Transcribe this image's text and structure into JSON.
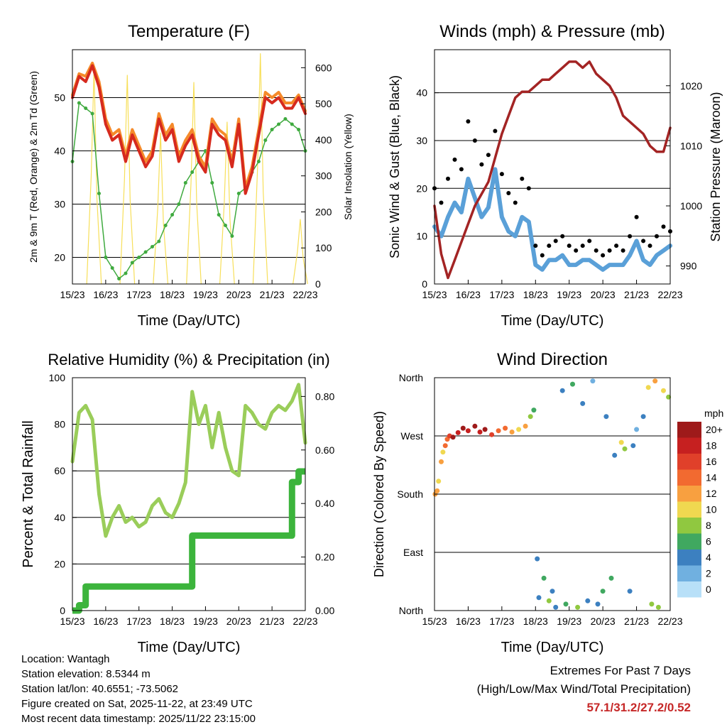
{
  "colors": {
    "red": "#d62a1e",
    "orange": "#f58a2a",
    "green_dewpoint": "#3faa3f",
    "yellow": "#f7df5a",
    "black": "#000000",
    "blue": "#5aa0d8",
    "maroon": "#a32424",
    "rh": "#9acd5a",
    "precip": "#3cb43c",
    "extremes": "#c62828"
  },
  "x_ticks": [
    "15/23",
    "16/23",
    "17/23",
    "18/23",
    "19/23",
    "20/23",
    "21/23",
    "22/23"
  ],
  "chart_data": [
    {
      "id": "temperature",
      "type": "line",
      "title": "Temperature (F)",
      "xlabel": "Time (Day/UTC)",
      "ylabel": "2m & 9m T (Red, Orange) & 2m Td (Green)",
      "y2label": "Solar Insolation (Yellow)",
      "ylim": [
        15,
        59
      ],
      "yticks": [
        20,
        30,
        40,
        50
      ],
      "y2lim": [
        0,
        650
      ],
      "y2ticks": [
        0,
        100,
        200,
        300,
        400,
        500,
        600
      ],
      "x": [
        0,
        0.2,
        0.4,
        0.6,
        0.8,
        1.0,
        1.2,
        1.4,
        1.6,
        1.8,
        2.0,
        2.2,
        2.4,
        2.6,
        2.8,
        3.0,
        3.2,
        3.4,
        3.6,
        3.8,
        4.0,
        4.2,
        4.4,
        4.6,
        4.8,
        5.0,
        5.2,
        5.4,
        5.6,
        5.8,
        6.0,
        6.2,
        6.4,
        6.6,
        6.8,
        7.0
      ],
      "series": [
        {
          "name": "2m T",
          "color": "#d62a1e",
          "values": [
            50,
            54,
            53,
            56,
            52,
            45,
            42,
            43,
            38,
            43,
            40,
            37,
            39,
            46,
            42,
            44,
            38,
            41,
            43,
            38,
            36,
            45,
            43,
            42,
            37,
            45,
            32,
            36,
            43,
            50,
            49,
            50,
            48,
            48,
            50,
            47
          ]
        },
        {
          "name": "9m T",
          "color": "#f58a2a",
          "values": [
            50.5,
            54.5,
            54,
            56.5,
            53,
            46,
            43,
            44,
            39,
            44,
            41,
            38,
            40,
            47,
            43,
            45,
            39,
            42,
            44,
            39,
            37,
            46,
            44,
            43,
            38,
            46,
            33,
            37,
            44,
            51,
            50,
            51,
            49,
            49,
            50.5,
            47.5
          ]
        },
        {
          "name": "2m Td",
          "color": "#3faa3f",
          "values": [
            38,
            49,
            48,
            47,
            32,
            20,
            18,
            16,
            17,
            19,
            20,
            21,
            22,
            23,
            26,
            28,
            30,
            34,
            36,
            38,
            40,
            34,
            28,
            26,
            24,
            32,
            33,
            36,
            38,
            42,
            44,
            45,
            46,
            45,
            44,
            40
          ]
        }
      ],
      "insolation": [
        {
          "center": 0.65,
          "peak": 600
        },
        {
          "center": 1.65,
          "peak": 580
        },
        {
          "center": 2.65,
          "peak": 420
        },
        {
          "center": 3.65,
          "peak": 560
        },
        {
          "center": 4.65,
          "peak": 450
        },
        {
          "center": 5.65,
          "peak": 640
        },
        {
          "center": 6.85,
          "peak": 180
        }
      ]
    },
    {
      "id": "winds",
      "type": "scatter",
      "title": "Winds (mph) & Pressure (mb)",
      "xlabel": "Time (Day/UTC)",
      "ylabel": "Sonic Wind & Gust (Blue, Black)",
      "y2label": "Station Pressure (Maroon)",
      "ylim": [
        0,
        49
      ],
      "yticks": [
        0,
        10,
        20,
        30,
        40
      ],
      "y2lim": [
        987,
        1026
      ],
      "y2ticks": [
        990,
        1000,
        1010,
        1020
      ],
      "x": [
        0,
        0.2,
        0.4,
        0.6,
        0.8,
        1.0,
        1.2,
        1.4,
        1.6,
        1.8,
        2.0,
        2.2,
        2.4,
        2.6,
        2.8,
        3.0,
        3.2,
        3.4,
        3.6,
        3.8,
        4.0,
        4.2,
        4.4,
        4.6,
        4.8,
        5.0,
        5.2,
        5.4,
        5.6,
        5.8,
        6.0,
        6.2,
        6.4,
        6.6,
        6.8,
        7.0
      ],
      "series": [
        {
          "name": "Sonic Wind",
          "color": "#5aa0d8",
          "values": [
            12,
            10,
            14,
            17,
            15,
            22,
            18,
            14,
            16,
            24,
            14,
            11,
            10,
            14,
            13,
            4,
            3,
            5,
            5,
            6,
            4,
            4,
            5,
            5,
            4,
            3,
            4,
            4,
            4,
            6,
            9,
            5,
            4,
            6,
            7,
            8
          ]
        },
        {
          "name": "Gust",
          "color": "#000000",
          "values": [
            20,
            17,
            22,
            26,
            24,
            34,
            30,
            25,
            27,
            32,
            23,
            19,
            17,
            22,
            20,
            8,
            6,
            8,
            9,
            10,
            8,
            7,
            8,
            9,
            7,
            6,
            7,
            8,
            7,
            10,
            14,
            9,
            8,
            10,
            12,
            11
          ]
        },
        {
          "name": "Station Pressure",
          "color": "#a32424",
          "values": [
            1000,
            992,
            988,
            991,
            994,
            997,
            1000,
            1002,
            1004,
            1008,
            1012,
            1015,
            1018,
            1019,
            1019,
            1020,
            1021,
            1021,
            1022,
            1023,
            1024,
            1024,
            1023,
            1024,
            1022,
            1021,
            1020,
            1018,
            1015,
            1014,
            1013,
            1012,
            1010,
            1009,
            1009,
            1013
          ]
        }
      ]
    },
    {
      "id": "humidity",
      "type": "line",
      "title": "Relative Humidity (%) & Precipitation (in)",
      "xlabel": "Time (Day/UTC)",
      "ylabel": "Percent & Total Rainfall",
      "ylim": [
        0,
        100
      ],
      "yticks": [
        0,
        20,
        40,
        60,
        80,
        100
      ],
      "y2lim": [
        0,
        0.87
      ],
      "y2ticks": [
        "0.00",
        "0.20",
        "0.40",
        "0.60",
        "0.80"
      ],
      "x": [
        0,
        0.2,
        0.4,
        0.6,
        0.8,
        1.0,
        1.2,
        1.4,
        1.6,
        1.8,
        2.0,
        2.2,
        2.4,
        2.6,
        2.8,
        3.0,
        3.2,
        3.4,
        3.6,
        3.8,
        4.0,
        4.2,
        4.4,
        4.6,
        4.8,
        5.0,
        5.2,
        5.4,
        5.6,
        5.8,
        6.0,
        6.2,
        6.4,
        6.6,
        6.8,
        7.0
      ],
      "series": [
        {
          "name": "Relative Humidity",
          "color": "#9acd5a",
          "values": [
            64,
            85,
            88,
            82,
            50,
            32,
            40,
            45,
            38,
            40,
            36,
            38,
            45,
            48,
            42,
            40,
            46,
            55,
            94,
            80,
            88,
            70,
            85,
            70,
            60,
            58,
            88,
            85,
            80,
            78,
            85,
            88,
            86,
            90,
            97,
            72
          ]
        },
        {
          "name": "Total Rainfall",
          "color": "#3cb43c",
          "values": [
            0,
            0.02,
            0.09,
            0.09,
            0.09,
            0.09,
            0.09,
            0.09,
            0.09,
            0.09,
            0.09,
            0.09,
            0.09,
            0.09,
            0.09,
            0.09,
            0.09,
            0.09,
            0.28,
            0.28,
            0.28,
            0.28,
            0.28,
            0.28,
            0.28,
            0.28,
            0.28,
            0.28,
            0.28,
            0.28,
            0.28,
            0.28,
            0.28,
            0.48,
            0.52,
            0.52
          ]
        }
      ]
    },
    {
      "id": "direction",
      "type": "scatter",
      "title": "Wind Direction",
      "xlabel": "Time (Day/UTC)",
      "ylabel": "Direction (Colored By Speed)",
      "yticks": [
        "North",
        "East",
        "South",
        "West",
        "North"
      ],
      "legend_title": "mph",
      "legend_labels": [
        "20+",
        "18",
        "16",
        "14",
        "12",
        "10",
        "8",
        "6",
        "4",
        "2",
        "0"
      ],
      "legend_colors": [
        "#9e1a1a",
        "#c62020",
        "#e0402a",
        "#f26a30",
        "#f8a040",
        "#f0d850",
        "#90c840",
        "#40a860",
        "#3c80c0",
        "#70b0e0",
        "#b8e0f8"
      ],
      "points": [
        {
          "x": 0.02,
          "y": 180,
          "s": 12
        },
        {
          "x": 0.08,
          "y": 185,
          "s": 11
        },
        {
          "x": 0.12,
          "y": 200,
          "s": 10
        },
        {
          "x": 0.2,
          "y": 230,
          "s": 12
        },
        {
          "x": 0.25,
          "y": 245,
          "s": 10
        },
        {
          "x": 0.32,
          "y": 255,
          "s": 14
        },
        {
          "x": 0.38,
          "y": 265,
          "s": 13
        },
        {
          "x": 0.45,
          "y": 270,
          "s": 15
        },
        {
          "x": 0.55,
          "y": 268,
          "s": 20
        },
        {
          "x": 0.7,
          "y": 275,
          "s": 18
        },
        {
          "x": 0.85,
          "y": 282,
          "s": 20
        },
        {
          "x": 1.0,
          "y": 278,
          "s": 18
        },
        {
          "x": 1.2,
          "y": 285,
          "s": 20
        },
        {
          "x": 1.35,
          "y": 276,
          "s": 18
        },
        {
          "x": 1.5,
          "y": 280,
          "s": 20
        },
        {
          "x": 1.7,
          "y": 272,
          "s": 16
        },
        {
          "x": 1.9,
          "y": 278,
          "s": 14
        },
        {
          "x": 2.1,
          "y": 282,
          "s": 14
        },
        {
          "x": 2.3,
          "y": 276,
          "s": 12
        },
        {
          "x": 2.5,
          "y": 280,
          "s": 10
        },
        {
          "x": 2.7,
          "y": 285,
          "s": 12
        },
        {
          "x": 2.85,
          "y": 300,
          "s": 8
        },
        {
          "x": 2.95,
          "y": 310,
          "s": 6
        },
        {
          "x": 3.05,
          "y": 80,
          "s": 3
        },
        {
          "x": 3.1,
          "y": 20,
          "s": 4
        },
        {
          "x": 3.25,
          "y": 50,
          "s": 6
        },
        {
          "x": 3.4,
          "y": 15,
          "s": 8
        },
        {
          "x": 3.5,
          "y": 30,
          "s": 3
        },
        {
          "x": 3.6,
          "y": 5,
          "s": 4
        },
        {
          "x": 3.8,
          "y": 340,
          "s": 4
        },
        {
          "x": 3.9,
          "y": 10,
          "s": 5
        },
        {
          "x": 4.1,
          "y": 350,
          "s": 6
        },
        {
          "x": 4.25,
          "y": 5,
          "s": 7
        },
        {
          "x": 4.4,
          "y": 320,
          "s": 3
        },
        {
          "x": 4.55,
          "y": 15,
          "s": 4
        },
        {
          "x": 4.7,
          "y": 355,
          "s": 2
        },
        {
          "x": 4.85,
          "y": 10,
          "s": 4
        },
        {
          "x": 5.0,
          "y": 30,
          "s": 5
        },
        {
          "x": 5.1,
          "y": 300,
          "s": 4
        },
        {
          "x": 5.25,
          "y": 50,
          "s": 6
        },
        {
          "x": 5.35,
          "y": 240,
          "s": 4
        },
        {
          "x": 5.55,
          "y": 260,
          "s": 10
        },
        {
          "x": 5.65,
          "y": 250,
          "s": 8
        },
        {
          "x": 5.8,
          "y": 30,
          "s": 3
        },
        {
          "x": 5.9,
          "y": 255,
          "s": 4
        },
        {
          "x": 6.0,
          "y": 280,
          "s": 2
        },
        {
          "x": 6.2,
          "y": 300,
          "s": 3
        },
        {
          "x": 6.35,
          "y": 345,
          "s": 10
        },
        {
          "x": 6.45,
          "y": 10,
          "s": 8
        },
        {
          "x": 6.55,
          "y": 355,
          "s": 12
        },
        {
          "x": 6.65,
          "y": 5,
          "s": 7
        },
        {
          "x": 6.8,
          "y": 340,
          "s": 10
        },
        {
          "x": 6.95,
          "y": 330,
          "s": 8
        }
      ]
    }
  ],
  "info": {
    "location": "Location: Wantagh",
    "elevation": "Station elevation: 8.5344 m",
    "latlon": "Station lat/lon: 40.6551; -73.5062",
    "created": "Figure created on Sat, 2025-11-22, at 23:49 UTC",
    "recent": "Most recent data timestamp: 2025/11/22 23:15:00"
  },
  "extremes": {
    "title": "Extremes For Past 7 Days",
    "subtitle": "(High/Low/Max Wind/Total Precipitation)",
    "values": "57.1/31.2/27.2/0.52"
  }
}
